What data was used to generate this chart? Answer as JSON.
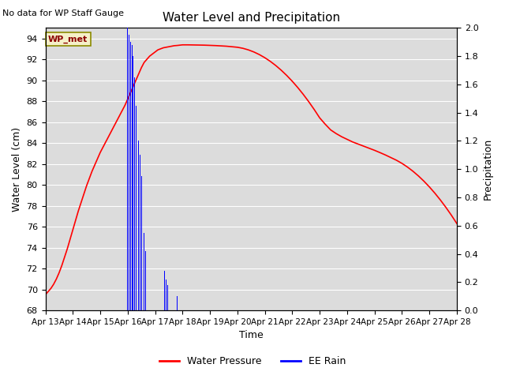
{
  "title": "Water Level and Precipitation",
  "subtitle": "No data for WP Staff Gauge",
  "ylabel_left": "Water Level (cm)",
  "ylabel_right": "Precipitation",
  "xlabel": "Time",
  "ylim_left": [
    68,
    95
  ],
  "ylim_right": [
    0.0,
    2.0
  ],
  "plot_bg_color": "#dcdcdc",
  "legend_label_wp": "Water Pressure",
  "legend_label_rain": "EE Rain",
  "wp_met_label": "WP_met",
  "water_pressure_color": "#ff0000",
  "rain_color": "#0000ff",
  "water_pressure_x": [
    13.0,
    13.1,
    13.2,
    13.3,
    13.4,
    13.5,
    13.6,
    13.7,
    13.8,
    13.9,
    14.0,
    14.1,
    14.2,
    14.3,
    14.4,
    14.5,
    14.6,
    14.7,
    14.8,
    14.9,
    15.0,
    15.1,
    15.2,
    15.3,
    15.4,
    15.5,
    15.6,
    15.7,
    15.8,
    15.9,
    16.0,
    16.1,
    16.2,
    16.3,
    16.4,
    16.5,
    16.6,
    16.7,
    16.8,
    16.9,
    17.0,
    17.1,
    17.2,
    17.3,
    17.4,
    17.5,
    17.6,
    17.7,
    17.8,
    17.9,
    18.0,
    18.2,
    18.4,
    18.6,
    18.8,
    19.0,
    19.2,
    19.4,
    19.6,
    19.8,
    20.0,
    20.2,
    20.4,
    20.6,
    20.8,
    21.0,
    21.2,
    21.4,
    21.6,
    21.8,
    22.0,
    22.2,
    22.4,
    22.6,
    22.8,
    23.0,
    23.2,
    23.4,
    23.6,
    23.8,
    24.0,
    24.2,
    24.4,
    24.6,
    24.8,
    25.0,
    25.2,
    25.4,
    25.6,
    25.8,
    26.0,
    26.2,
    26.4,
    26.6,
    26.8,
    27.0,
    27.2,
    27.4,
    27.6,
    27.8,
    28.0
  ],
  "water_pressure_y": [
    69.5,
    69.8,
    70.1,
    70.5,
    71.0,
    71.6,
    72.3,
    73.1,
    73.9,
    74.8,
    75.7,
    76.6,
    77.5,
    78.3,
    79.1,
    79.9,
    80.6,
    81.3,
    81.9,
    82.5,
    83.1,
    83.6,
    84.1,
    84.6,
    85.1,
    85.6,
    86.1,
    86.6,
    87.1,
    87.6,
    88.2,
    88.8,
    89.4,
    90.0,
    90.6,
    91.2,
    91.7,
    92.0,
    92.3,
    92.5,
    92.7,
    92.9,
    93.0,
    93.1,
    93.15,
    93.2,
    93.25,
    93.3,
    93.32,
    93.35,
    93.38,
    93.38,
    93.37,
    93.36,
    93.35,
    93.33,
    93.31,
    93.28,
    93.25,
    93.2,
    93.15,
    93.05,
    92.9,
    92.7,
    92.45,
    92.15,
    91.8,
    91.4,
    90.95,
    90.45,
    89.9,
    89.3,
    88.65,
    87.95,
    87.2,
    86.4,
    85.8,
    85.25,
    84.9,
    84.6,
    84.35,
    84.1,
    83.9,
    83.7,
    83.5,
    83.3,
    83.08,
    82.85,
    82.6,
    82.35,
    82.05,
    81.7,
    81.3,
    80.85,
    80.35,
    79.8,
    79.2,
    78.55,
    77.85,
    77.1,
    76.3
  ],
  "rain_x": [
    16.0,
    16.05,
    16.1,
    16.12,
    16.15,
    16.17,
    16.2,
    16.25,
    16.3,
    16.35,
    16.4,
    16.45,
    16.5,
    16.52,
    16.55,
    16.6,
    16.65,
    16.7,
    17.3,
    17.35,
    17.4,
    17.45,
    17.5,
    17.8,
    17.85,
    17.9
  ],
  "rain_heights": [
    2.0,
    1.95,
    1.9,
    1.92,
    1.85,
    1.88,
    1.8,
    1.65,
    1.45,
    1.3,
    1.2,
    1.1,
    0.95,
    0.8,
    0.7,
    0.55,
    0.42,
    0.35,
    0.35,
    0.28,
    0.22,
    0.18,
    0.12,
    0.1,
    0.08,
    0.06
  ],
  "xticks": [
    13,
    14,
    15,
    16,
    17,
    18,
    19,
    20,
    21,
    22,
    23,
    24,
    25,
    26,
    27,
    28
  ],
  "xtick_labels": [
    "Apr 13",
    "Apr 14",
    "Apr 15",
    "Apr 16",
    "Apr 17",
    "Apr 18",
    "Apr 19",
    "Apr 20",
    "Apr 21",
    "Apr 22",
    "Apr 23",
    "Apr 24",
    "Apr 25",
    "Apr 26",
    "Apr 27",
    "Apr 28"
  ],
  "yticks_left": [
    68,
    70,
    72,
    74,
    76,
    78,
    80,
    82,
    84,
    86,
    88,
    90,
    92,
    94
  ],
  "yticks_right": [
    0.0,
    0.2,
    0.4,
    0.6,
    0.8,
    1.0,
    1.2,
    1.4,
    1.6,
    1.8,
    2.0
  ]
}
